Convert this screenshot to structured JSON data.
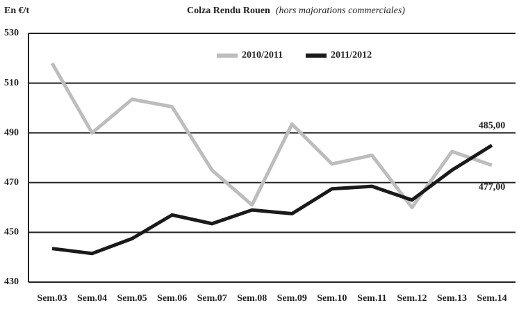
{
  "chart_data": {
    "type": "line",
    "title": "Colza Rendu Rouen",
    "subtitle": "(hors majorations commerciales)",
    "y_label": "En €/t",
    "categories": [
      "Sem.03",
      "Sem.04",
      "Sem.05",
      "Sem.06",
      "Sem.07",
      "Sem.08",
      "Sem.09",
      "Sem.10",
      "Sem.11",
      "Sem.12",
      "Sem.13",
      "Sem.14"
    ],
    "series": [
      {
        "name": "2010/2011",
        "color": "#bdbdbd",
        "values": [
          518,
          490,
          503.5,
          500.5,
          475,
          461,
          493.5,
          477.5,
          481,
          460,
          482.5,
          477
        ],
        "value_labels": [
          null,
          null,
          null,
          null,
          null,
          null,
          null,
          null,
          null,
          null,
          null,
          "477,00"
        ]
      },
      {
        "name": "2011/2012",
        "color": "#1a1a1a",
        "values": [
          443.5,
          441.5,
          447.5,
          457,
          453.5,
          459,
          457.5,
          467.5,
          468.5,
          463,
          475,
          485
        ],
        "value_labels": [
          null,
          null,
          null,
          null,
          null,
          null,
          null,
          null,
          null,
          null,
          null,
          "485,00"
        ]
      }
    ],
    "ylim": [
      430,
      530
    ],
    "yticks": [
      430,
      450,
      470,
      490,
      510,
      530
    ],
    "grid": true
  }
}
